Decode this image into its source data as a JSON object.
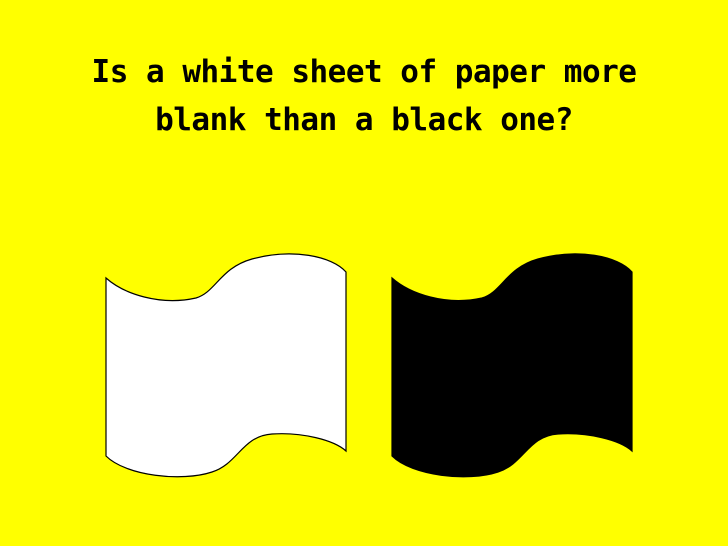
{
  "slide": {
    "title_line1": "Is a white sheet of paper more",
    "title_line2": "blank than a black one?"
  },
  "colors": {
    "background": "#FFFF00",
    "title": "#000000",
    "white_sheet_fill": "#FFFFFF",
    "black_sheet_fill": "#000000",
    "outline": "#000000"
  }
}
